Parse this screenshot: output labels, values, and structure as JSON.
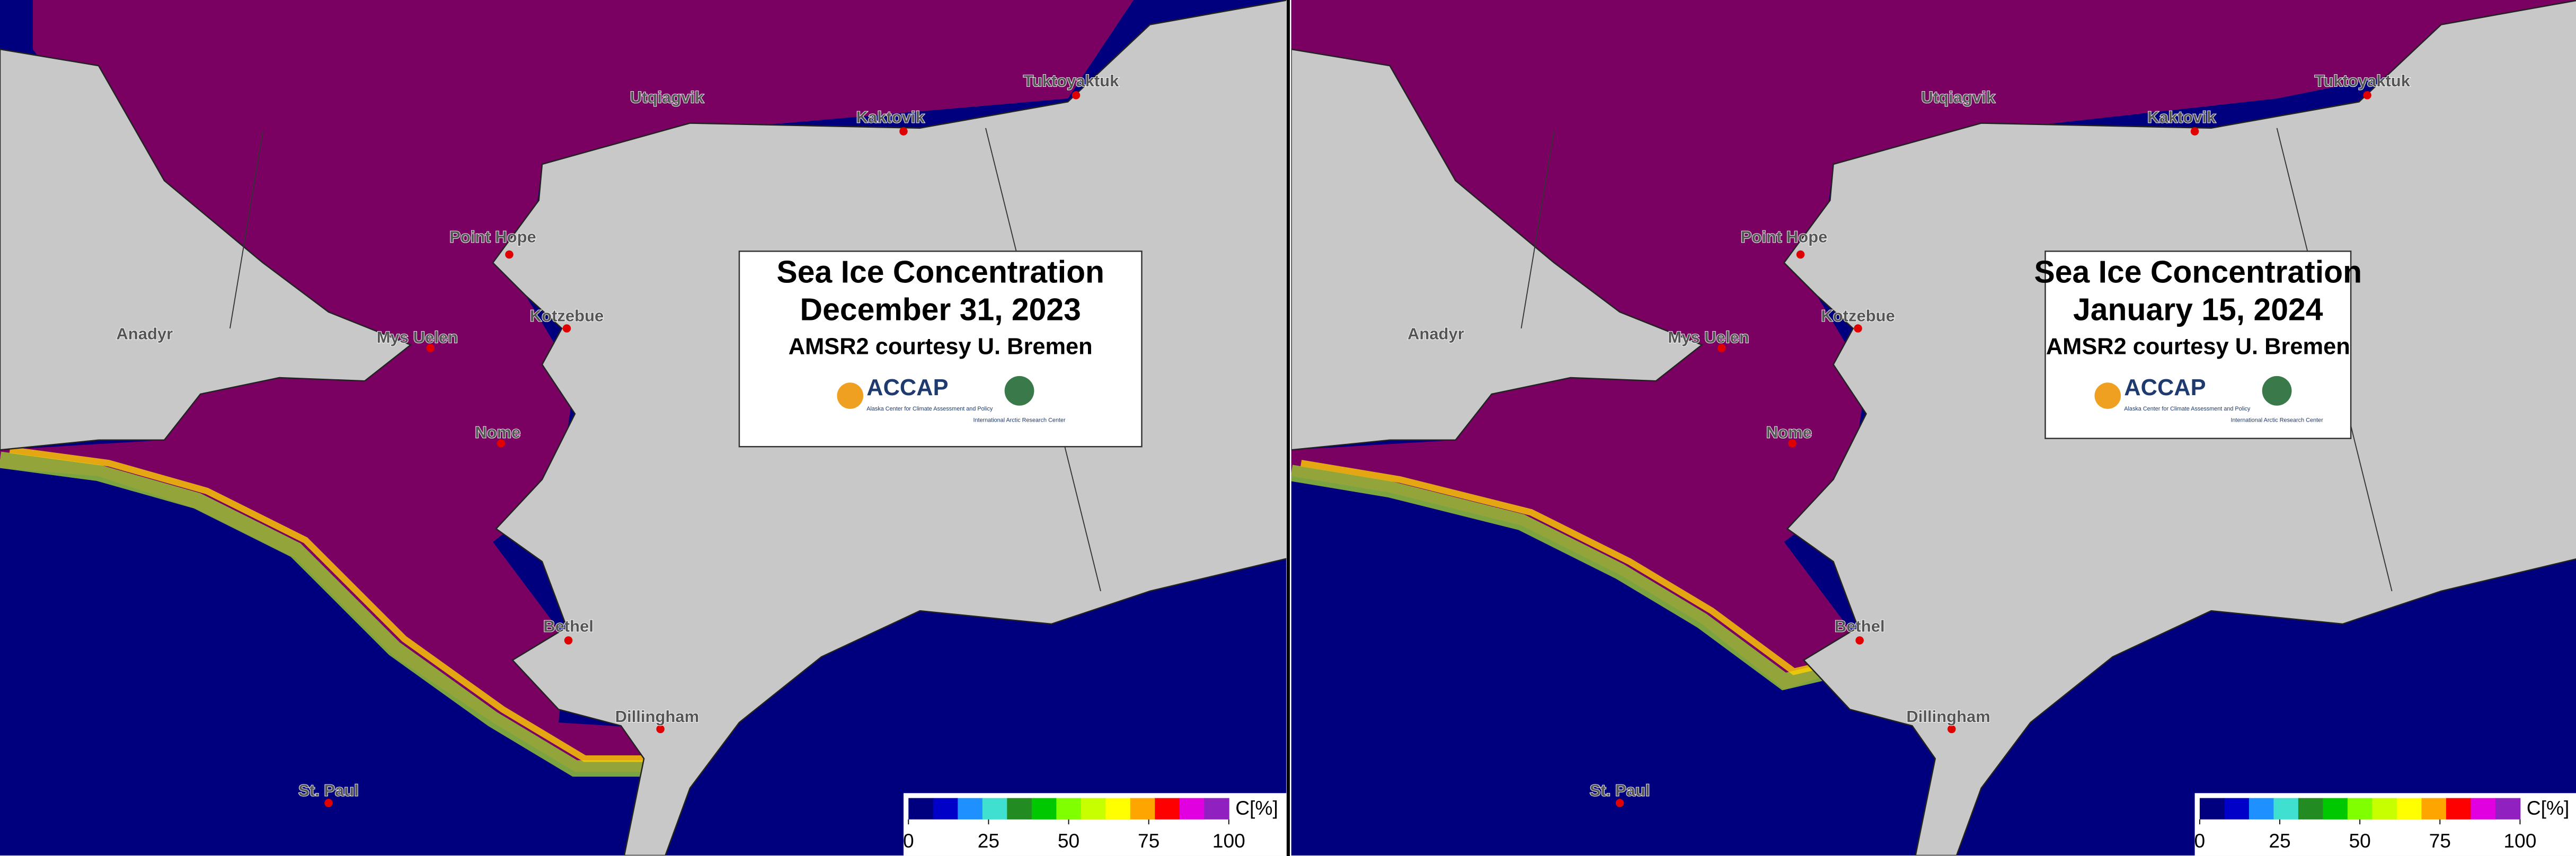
{
  "panels": [
    {
      "title": "Sea Ice Concentration",
      "date": "December 31, 2023",
      "credit": "AMSR2 courtesy U. Bremen"
    },
    {
      "title": "Sea Ice Concentration",
      "date": "January 15, 2024",
      "credit": "AMSR2 courtesy U. Bremen"
    }
  ],
  "places": [
    "Utqiagvik",
    "Kaktovik",
    "Tuktoyaktuk",
    "Point Hope",
    "Kotzebue",
    "Mys Uelen",
    "Anadyr",
    "Nome",
    "Bethel",
    "Dillingham",
    "St. Paul"
  ],
  "logo": {
    "name": "ACCAP",
    "subtitle": "Alaska Center for Climate Assessment and Policy",
    "partner": "International Arctic Research Center"
  },
  "colorbar": {
    "label": "C[%]",
    "ticks": [
      0,
      25,
      50,
      75,
      100
    ],
    "range": [
      0,
      100
    ],
    "colors": [
      "#00007f",
      "#0000c8",
      "#1e90ff",
      "#40e0d0",
      "#228b22",
      "#00c800",
      "#7fff00",
      "#c8ff00",
      "#ffff00",
      "#ffa500",
      "#ff0000",
      "#e000e0",
      "#9020c0"
    ]
  }
}
